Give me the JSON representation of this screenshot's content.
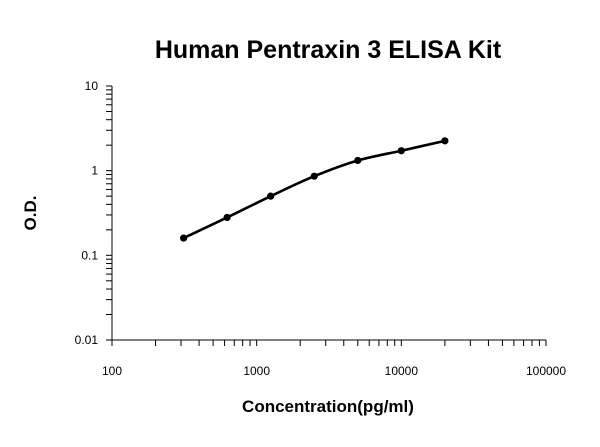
{
  "chart_data": {
    "type": "scatter",
    "title": "Human Pentraxin 3 ELISA Kit",
    "xlabel": "Concentration(pg/ml)",
    "ylabel": "O.D.",
    "x_scale": "log",
    "y_scale": "log",
    "xlim": [
      100,
      100000
    ],
    "ylim": [
      0.01,
      10
    ],
    "x_ticks": [
      100,
      1000,
      10000,
      100000
    ],
    "x_tick_labels": [
      "100",
      "1000",
      "10000",
      "100000"
    ],
    "y_ticks": [
      0.01,
      0.1,
      1,
      10
    ],
    "y_tick_labels": [
      "0.01",
      "0.1",
      "1",
      "10"
    ],
    "grid": false,
    "legend": "none",
    "series": [
      {
        "x": [
          312.5,
          625,
          1250,
          2500,
          5000,
          10000,
          20000
        ],
        "y": [
          0.16,
          0.28,
          0.5,
          0.86,
          1.32,
          1.72,
          2.25
        ],
        "color": "#000000",
        "marker": "circle",
        "line": "smooth"
      }
    ]
  }
}
